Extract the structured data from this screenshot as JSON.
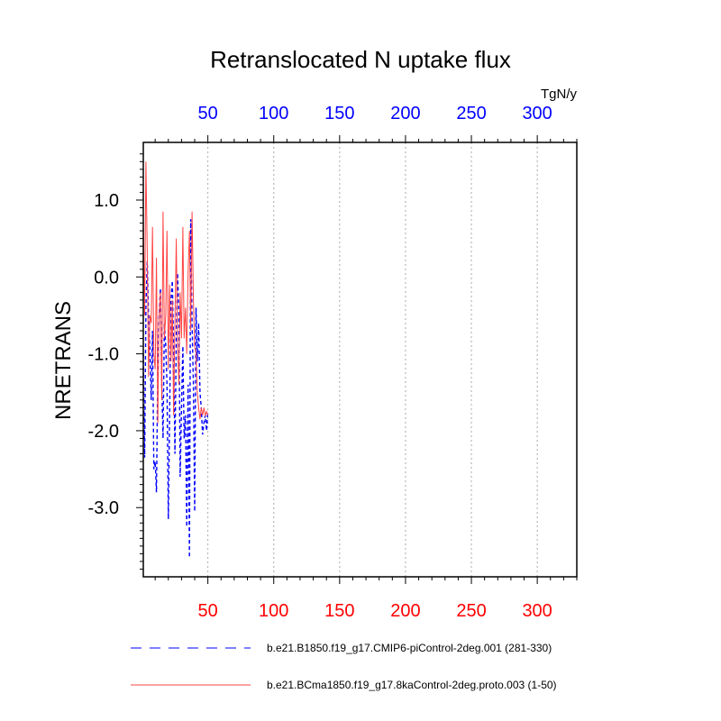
{
  "chart_data": {
    "type": "line",
    "title": "Retranslocated N uptake flux",
    "ylabel": "NRETRANS",
    "units": "TgN/y",
    "xlim": [
      1,
      330
    ],
    "ylim": [
      -3.9,
      1.75
    ],
    "x_ticks": [
      50,
      100,
      150,
      200,
      250,
      300
    ],
    "x_tick_labels": [
      "50",
      "100",
      "150",
      "200",
      "250",
      "300"
    ],
    "y_ticks": [
      1.0,
      0.0,
      -1.0,
      -2.0,
      -3.0
    ],
    "y_tick_labels": [
      "1.0",
      "0.0",
      "-1.0",
      "-2.0",
      "-3.0"
    ],
    "bottom_axis_color": "#ff0000",
    "top_axis_color": "#0000ff",
    "grid": "vertical dotted at major x ticks",
    "series": [
      {
        "name": "b.e21.B1850.f19_g17.CMIP6-piControl-2deg.001 (281-330)",
        "color": "#0000ff",
        "style": "dashed",
        "x": [
          1,
          2,
          3,
          4,
          5,
          6,
          7,
          8,
          9,
          10,
          11,
          12,
          13,
          14,
          15,
          16,
          17,
          18,
          19,
          20,
          21,
          22,
          23,
          24,
          25,
          26,
          27,
          28,
          29,
          30,
          31,
          32,
          33,
          34,
          35,
          36,
          37,
          38,
          39,
          40,
          41,
          42,
          43,
          44,
          45,
          46,
          47,
          48,
          49,
          50
        ],
        "values": [
          -1.0,
          -2.35,
          -0.4,
          0.2,
          -0.5,
          -0.9,
          -1.6,
          -0.7,
          -2.5,
          -2.4,
          -2.8,
          -1.2,
          -0.5,
          -0.15,
          -1.4,
          -2.1,
          -0.6,
          -0.9,
          -1.4,
          -3.15,
          -1.8,
          -0.3,
          -0.05,
          -0.9,
          -2.3,
          -0.8,
          0.05,
          -0.5,
          -2.6,
          -1.7,
          -0.9,
          -2.1,
          -1.8,
          -3.25,
          -1.4,
          -3.65,
          0.75,
          -0.6,
          -1.4,
          -3.05,
          -0.4,
          -1.1,
          -0.6,
          -1.5,
          -1.7,
          -2.05,
          -1.9,
          -1.8,
          -2.0,
          -1.75
        ]
      },
      {
        "name": "b.e21.BCma1850.f19_g17.8kaControl-2deg.proto.003 (1-50)",
        "color": "#ff4444",
        "style": "solid",
        "x": [
          1,
          2,
          3,
          4,
          5,
          6,
          7,
          8,
          9,
          10,
          11,
          12,
          13,
          14,
          15,
          16,
          17,
          18,
          19,
          20,
          21,
          22,
          23,
          24,
          25,
          26,
          27,
          28,
          29,
          30,
          31,
          32,
          33,
          34,
          35,
          36,
          37,
          38,
          39,
          40,
          41,
          42,
          43,
          44,
          45,
          46,
          47,
          48,
          49,
          50
        ],
        "values": [
          0.8,
          -0.5,
          1.5,
          0.3,
          -1.3,
          -0.5,
          -0.6,
          0.65,
          -1.0,
          -1.2,
          0.25,
          -1.9,
          -0.5,
          -0.2,
          -1.6,
          0.85,
          -0.8,
          -0.5,
          0.6,
          -1.2,
          -0.1,
          -1.1,
          -0.3,
          -1.8,
          -0.6,
          0.5,
          -0.9,
          -1.4,
          -0.2,
          -0.8,
          0.65,
          -0.8,
          -0.4,
          -1.0,
          0.05,
          0.6,
          -0.7,
          0.85,
          -0.3,
          -0.9,
          -1.0,
          -1.5,
          -1.7,
          -1.85,
          -1.7,
          -1.8,
          -1.7,
          -1.8,
          -1.75,
          -1.8
        ]
      }
    ]
  }
}
